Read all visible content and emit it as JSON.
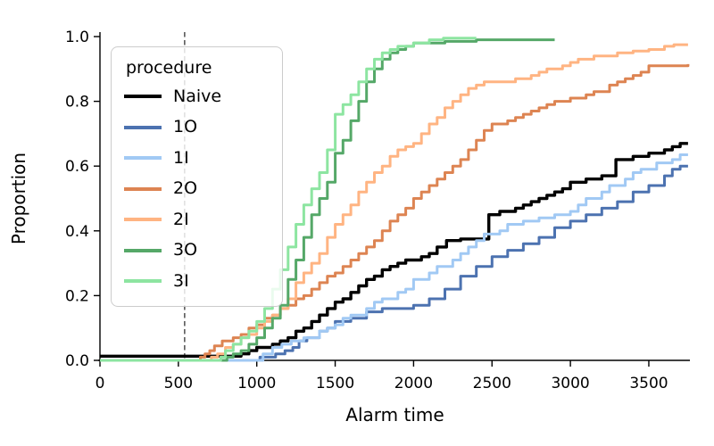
{
  "chart_data": {
    "type": "line",
    "subtype": "ecdf-step",
    "title": "",
    "xlabel": "Alarm time",
    "ylabel": "Proportion",
    "xlim": [
      0,
      3762
    ],
    "ylim": [
      0,
      1.0
    ],
    "grid": false,
    "x_ticks": [
      0,
      500,
      1000,
      1500,
      2000,
      2500,
      3000,
      3500
    ],
    "x_tick_labels": [
      "0",
      "500",
      "1000",
      "1500",
      "2000",
      "2500",
      "3000",
      "3500"
    ],
    "y_ticks": [
      0.0,
      0.2,
      0.4,
      0.6,
      0.8,
      1.0
    ],
    "y_tick_labels": [
      "0.0",
      "0.2",
      "0.4",
      "0.6",
      "0.8",
      "1.0"
    ],
    "legend_title": "procedure",
    "legend_position": "upper-left",
    "vline": {
      "x": 540,
      "style": "dashed",
      "color": "#333333"
    },
    "series": [
      {
        "name": "Naive",
        "color": "#000000",
        "width": 3.4,
        "points": [
          [
            0,
            0.013
          ],
          [
            900,
            0.02
          ],
          [
            950,
            0.03
          ],
          [
            1000,
            0.04
          ],
          [
            1100,
            0.05
          ],
          [
            1150,
            0.06
          ],
          [
            1200,
            0.07
          ],
          [
            1250,
            0.09
          ],
          [
            1300,
            0.1
          ],
          [
            1350,
            0.12
          ],
          [
            1400,
            0.14
          ],
          [
            1450,
            0.16
          ],
          [
            1500,
            0.18
          ],
          [
            1550,
            0.19
          ],
          [
            1600,
            0.21
          ],
          [
            1650,
            0.23
          ],
          [
            1700,
            0.25
          ],
          [
            1750,
            0.26
          ],
          [
            1800,
            0.28
          ],
          [
            1850,
            0.29
          ],
          [
            1900,
            0.3
          ],
          [
            1950,
            0.31
          ],
          [
            2050,
            0.32
          ],
          [
            2100,
            0.33
          ],
          [
            2150,
            0.35
          ],
          [
            2210,
            0.37
          ],
          [
            2300,
            0.375
          ],
          [
            2480,
            0.45
          ],
          [
            2550,
            0.46
          ],
          [
            2650,
            0.47
          ],
          [
            2700,
            0.48
          ],
          [
            2750,
            0.49
          ],
          [
            2800,
            0.5
          ],
          [
            2850,
            0.51
          ],
          [
            2900,
            0.52
          ],
          [
            2950,
            0.53
          ],
          [
            3000,
            0.55
          ],
          [
            3100,
            0.56
          ],
          [
            3200,
            0.57
          ],
          [
            3290,
            0.62
          ],
          [
            3400,
            0.63
          ],
          [
            3500,
            0.64
          ],
          [
            3600,
            0.65
          ],
          [
            3650,
            0.66
          ],
          [
            3700,
            0.67
          ],
          [
            3750,
            0.67
          ]
        ]
      },
      {
        "name": "1O",
        "color": "#4C72B0",
        "width": 3,
        "points": [
          [
            0,
            0
          ],
          [
            1020,
            0.01
          ],
          [
            1120,
            0.02
          ],
          [
            1180,
            0.03
          ],
          [
            1230,
            0.04
          ],
          [
            1270,
            0.06
          ],
          [
            1320,
            0.07
          ],
          [
            1400,
            0.09
          ],
          [
            1450,
            0.1
          ],
          [
            1500,
            0.12
          ],
          [
            1600,
            0.13
          ],
          [
            1700,
            0.15
          ],
          [
            1800,
            0.16
          ],
          [
            2000,
            0.17
          ],
          [
            2100,
            0.19
          ],
          [
            2200,
            0.22
          ],
          [
            2300,
            0.26
          ],
          [
            2400,
            0.29
          ],
          [
            2500,
            0.32
          ],
          [
            2600,
            0.34
          ],
          [
            2700,
            0.36
          ],
          [
            2800,
            0.38
          ],
          [
            2900,
            0.41
          ],
          [
            3000,
            0.43
          ],
          [
            3100,
            0.45
          ],
          [
            3200,
            0.47
          ],
          [
            3300,
            0.49
          ],
          [
            3400,
            0.52
          ],
          [
            3500,
            0.54
          ],
          [
            3600,
            0.57
          ],
          [
            3650,
            0.59
          ],
          [
            3700,
            0.6
          ],
          [
            3750,
            0.6
          ]
        ]
      },
      {
        "name": "1I",
        "color": "#A1C9F4",
        "width": 3,
        "points": [
          [
            0,
            0
          ],
          [
            1040,
            0.02
          ],
          [
            1100,
            0.04
          ],
          [
            1160,
            0.05
          ],
          [
            1220,
            0.06
          ],
          [
            1300,
            0.07
          ],
          [
            1400,
            0.09
          ],
          [
            1450,
            0.1
          ],
          [
            1500,
            0.11
          ],
          [
            1550,
            0.13
          ],
          [
            1600,
            0.14
          ],
          [
            1700,
            0.16
          ],
          [
            1750,
            0.18
          ],
          [
            1800,
            0.19
          ],
          [
            1900,
            0.21
          ],
          [
            1950,
            0.22
          ],
          [
            2000,
            0.25
          ],
          [
            2100,
            0.27
          ],
          [
            2150,
            0.29
          ],
          [
            2250,
            0.31
          ],
          [
            2300,
            0.33
          ],
          [
            2350,
            0.35
          ],
          [
            2400,
            0.37
          ],
          [
            2450,
            0.39
          ],
          [
            2550,
            0.4
          ],
          [
            2600,
            0.42
          ],
          [
            2700,
            0.43
          ],
          [
            2800,
            0.44
          ],
          [
            2900,
            0.45
          ],
          [
            3000,
            0.46
          ],
          [
            3050,
            0.48
          ],
          [
            3100,
            0.5
          ],
          [
            3200,
            0.52
          ],
          [
            3250,
            0.54
          ],
          [
            3350,
            0.56
          ],
          [
            3400,
            0.58
          ],
          [
            3450,
            0.59
          ],
          [
            3550,
            0.61
          ],
          [
            3650,
            0.62
          ],
          [
            3700,
            0.635
          ],
          [
            3750,
            0.635
          ]
        ]
      },
      {
        "name": "2O",
        "color": "#DD8452",
        "width": 3,
        "points": [
          [
            0,
            0
          ],
          [
            640,
            0.01
          ],
          [
            670,
            0.02
          ],
          [
            700,
            0.03
          ],
          [
            730,
            0.045
          ],
          [
            780,
            0.06
          ],
          [
            850,
            0.07
          ],
          [
            900,
            0.08
          ],
          [
            950,
            0.1
          ],
          [
            1000,
            0.11
          ],
          [
            1050,
            0.13
          ],
          [
            1100,
            0.14
          ],
          [
            1150,
            0.16
          ],
          [
            1200,
            0.17
          ],
          [
            1250,
            0.19
          ],
          [
            1300,
            0.2
          ],
          [
            1350,
            0.22
          ],
          [
            1400,
            0.24
          ],
          [
            1450,
            0.26
          ],
          [
            1500,
            0.27
          ],
          [
            1550,
            0.29
          ],
          [
            1600,
            0.31
          ],
          [
            1650,
            0.33
          ],
          [
            1700,
            0.35
          ],
          [
            1750,
            0.37
          ],
          [
            1800,
            0.4
          ],
          [
            1850,
            0.43
          ],
          [
            1900,
            0.45
          ],
          [
            1950,
            0.47
          ],
          [
            2000,
            0.5
          ],
          [
            2050,
            0.52
          ],
          [
            2100,
            0.54
          ],
          [
            2150,
            0.56
          ],
          [
            2200,
            0.58
          ],
          [
            2250,
            0.6
          ],
          [
            2300,
            0.62
          ],
          [
            2350,
            0.65
          ],
          [
            2400,
            0.68
          ],
          [
            2450,
            0.71
          ],
          [
            2500,
            0.73
          ],
          [
            2600,
            0.74
          ],
          [
            2650,
            0.75
          ],
          [
            2700,
            0.76
          ],
          [
            2750,
            0.77
          ],
          [
            2800,
            0.78
          ],
          [
            2850,
            0.79
          ],
          [
            2900,
            0.8
          ],
          [
            3000,
            0.81
          ],
          [
            3100,
            0.82
          ],
          [
            3150,
            0.83
          ],
          [
            3250,
            0.85
          ],
          [
            3300,
            0.86
          ],
          [
            3350,
            0.87
          ],
          [
            3400,
            0.88
          ],
          [
            3450,
            0.89
          ],
          [
            3500,
            0.91
          ],
          [
            3750,
            0.915
          ]
        ]
      },
      {
        "name": "2I",
        "color": "#FFB482",
        "width": 3,
        "points": [
          [
            0,
            0
          ],
          [
            710,
            0.01
          ],
          [
            750,
            0.02
          ],
          [
            800,
            0.04
          ],
          [
            850,
            0.05
          ],
          [
            900,
            0.07
          ],
          [
            950,
            0.08
          ],
          [
            1000,
            0.1
          ],
          [
            1050,
            0.12
          ],
          [
            1100,
            0.14
          ],
          [
            1150,
            0.16
          ],
          [
            1200,
            0.19
          ],
          [
            1250,
            0.24
          ],
          [
            1300,
            0.27
          ],
          [
            1350,
            0.3
          ],
          [
            1400,
            0.33
          ],
          [
            1450,
            0.38
          ],
          [
            1500,
            0.42
          ],
          [
            1550,
            0.45
          ],
          [
            1600,
            0.48
          ],
          [
            1650,
            0.52
          ],
          [
            1700,
            0.55
          ],
          [
            1750,
            0.58
          ],
          [
            1800,
            0.6
          ],
          [
            1850,
            0.63
          ],
          [
            1900,
            0.65
          ],
          [
            1950,
            0.66
          ],
          [
            2000,
            0.67
          ],
          [
            2050,
            0.7
          ],
          [
            2100,
            0.73
          ],
          [
            2150,
            0.75
          ],
          [
            2200,
            0.78
          ],
          [
            2250,
            0.8
          ],
          [
            2300,
            0.82
          ],
          [
            2350,
            0.84
          ],
          [
            2400,
            0.85
          ],
          [
            2450,
            0.86
          ],
          [
            2650,
            0.87
          ],
          [
            2750,
            0.88
          ],
          [
            2800,
            0.89
          ],
          [
            2850,
            0.9
          ],
          [
            2950,
            0.91
          ],
          [
            3000,
            0.92
          ],
          [
            3050,
            0.93
          ],
          [
            3150,
            0.94
          ],
          [
            3300,
            0.95
          ],
          [
            3400,
            0.955
          ],
          [
            3500,
            0.96
          ],
          [
            3600,
            0.97
          ],
          [
            3660,
            0.975
          ],
          [
            3750,
            0.975
          ]
        ]
      },
      {
        "name": "3O",
        "color": "#55A868",
        "width": 3,
        "points": [
          [
            0,
            0
          ],
          [
            810,
            0.01
          ],
          [
            850,
            0.02
          ],
          [
            900,
            0.03
          ],
          [
            950,
            0.05
          ],
          [
            1000,
            0.07
          ],
          [
            1050,
            0.1
          ],
          [
            1100,
            0.13
          ],
          [
            1150,
            0.17
          ],
          [
            1200,
            0.25
          ],
          [
            1250,
            0.31
          ],
          [
            1300,
            0.38
          ],
          [
            1350,
            0.45
          ],
          [
            1400,
            0.5
          ],
          [
            1450,
            0.55
          ],
          [
            1500,
            0.64
          ],
          [
            1550,
            0.68
          ],
          [
            1600,
            0.74
          ],
          [
            1650,
            0.8
          ],
          [
            1700,
            0.86
          ],
          [
            1750,
            0.9
          ],
          [
            1800,
            0.93
          ],
          [
            1850,
            0.95
          ],
          [
            1900,
            0.96
          ],
          [
            1950,
            0.97
          ],
          [
            2000,
            0.98
          ],
          [
            2200,
            0.985
          ],
          [
            2400,
            0.99
          ],
          [
            2900,
            0.99
          ]
        ]
      },
      {
        "name": "3I",
        "color": "#8DE5A1",
        "width": 3,
        "points": [
          [
            0,
            0
          ],
          [
            770,
            0.01
          ],
          [
            800,
            0.03
          ],
          [
            850,
            0.05
          ],
          [
            900,
            0.07
          ],
          [
            950,
            0.09
          ],
          [
            1000,
            0.12
          ],
          [
            1050,
            0.16
          ],
          [
            1100,
            0.22
          ],
          [
            1150,
            0.28
          ],
          [
            1200,
            0.35
          ],
          [
            1250,
            0.42
          ],
          [
            1300,
            0.48
          ],
          [
            1350,
            0.53
          ],
          [
            1400,
            0.58
          ],
          [
            1450,
            0.65
          ],
          [
            1500,
            0.76
          ],
          [
            1550,
            0.79
          ],
          [
            1600,
            0.82
          ],
          [
            1650,
            0.86
          ],
          [
            1700,
            0.9
          ],
          [
            1750,
            0.93
          ],
          [
            1800,
            0.95
          ],
          [
            1850,
            0.96
          ],
          [
            1900,
            0.97
          ],
          [
            2000,
            0.98
          ],
          [
            2100,
            0.99
          ],
          [
            2190,
            0.995
          ],
          [
            2400,
            0.995
          ]
        ]
      }
    ]
  }
}
